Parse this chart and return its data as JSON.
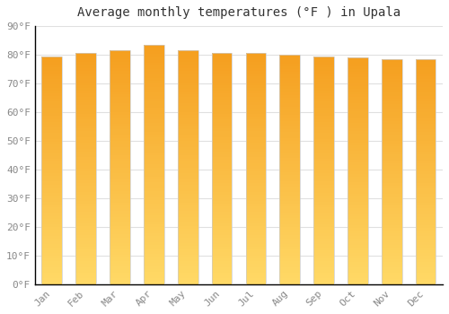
{
  "title": "Average monthly temperatures (°F ) in Upala",
  "categories": [
    "Jan",
    "Feb",
    "Mar",
    "Apr",
    "May",
    "Jun",
    "Jul",
    "Aug",
    "Sep",
    "Oct",
    "Nov",
    "Dec"
  ],
  "values": [
    79.5,
    80.5,
    81.5,
    83.5,
    81.5,
    80.5,
    80.5,
    80.0,
    79.5,
    79.0,
    78.5,
    78.5
  ],
  "background_color": "#FFFFFF",
  "plot_bg_color": "#FFFFFF",
  "bar_color_bottom": "#FFD966",
  "bar_color_top": "#F4A020",
  "bar_edge_color": "#CCCCCC",
  "grid_color": "#E0E0E0",
  "ylim": [
    0,
    90
  ],
  "yticks": [
    0,
    10,
    20,
    30,
    40,
    50,
    60,
    70,
    80,
    90
  ],
  "ytick_labels": [
    "0°F",
    "10°F",
    "20°F",
    "30°F",
    "40°F",
    "50°F",
    "60°F",
    "70°F",
    "80°F",
    "90°F"
  ],
  "title_fontsize": 10,
  "tick_fontsize": 8,
  "tick_color": "#888888",
  "axis_line_color": "#000000",
  "bar_width": 0.6
}
